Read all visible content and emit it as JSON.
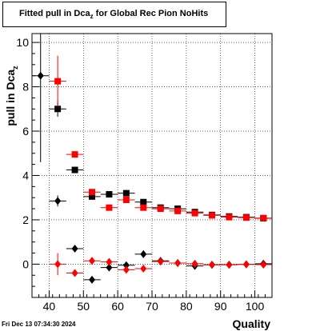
{
  "title": {
    "text": "Fitted pull in Dca",
    "sub": "z",
    "rest": " for Global Rec Pion NoHits"
  },
  "footer_timestamp": "Fri Dec 13 07:34:30 2024",
  "chart_data": {
    "type": "scatter",
    "title": "Fitted pull in Dca_z for Global Rec Pion NoHits",
    "xlabel": "Quality",
    "ylabel": "pull in Dca_z",
    "xlim": [
      35,
      105
    ],
    "ylim": [
      -1.5,
      10.4
    ],
    "grid": true,
    "x_ticks": [
      40,
      50,
      60,
      70,
      80,
      90,
      100
    ],
    "y_ticks": [
      0,
      2,
      4,
      6,
      8,
      10
    ],
    "series": [
      {
        "color": "#000000",
        "marker": "square",
        "points": [
          {
            "x": 42.5,
            "y": 7.0,
            "xerr": 2.5,
            "yerr": 0.35
          },
          {
            "x": 47.5,
            "y": 4.25,
            "xerr": 2.5,
            "yerr": 0.1
          },
          {
            "x": 52.5,
            "y": 3.05,
            "xerr": 2.5,
            "yerr": 0.1
          },
          {
            "x": 57.5,
            "y": 3.15,
            "xerr": 2.5,
            "yerr": 0.08
          },
          {
            "x": 62.5,
            "y": 3.2,
            "xerr": 2.5,
            "yerr": 0.08
          },
          {
            "x": 67.5,
            "y": 2.8,
            "xerr": 2.5,
            "yerr": 0.06
          },
          {
            "x": 72.5,
            "y": 2.55,
            "xerr": 2.5,
            "yerr": 0.05
          },
          {
            "x": 77.5,
            "y": 2.5,
            "xerr": 2.5,
            "yerr": 0.05
          },
          {
            "x": 82.5,
            "y": 2.35,
            "xerr": 2.5,
            "yerr": 0.05
          },
          {
            "x": 87.5,
            "y": 2.22,
            "xerr": 2.5,
            "yerr": 0.04
          },
          {
            "x": 92.5,
            "y": 2.15,
            "xerr": 2.5,
            "yerr": 0.04
          },
          {
            "x": 97.5,
            "y": 2.12,
            "xerr": 2.5,
            "yerr": 0.04
          },
          {
            "x": 102.5,
            "y": 2.07,
            "xerr": 2.5,
            "yerr": 0.04
          }
        ]
      },
      {
        "color": "#ff0000",
        "marker": "square",
        "points": [
          {
            "x": 42.5,
            "y": 8.25,
            "xerr": 2.5,
            "yerr": 1.15
          },
          {
            "x": 47.5,
            "y": 4.95,
            "xerr": 2.5,
            "yerr": 0.1
          },
          {
            "x": 52.5,
            "y": 3.25,
            "xerr": 2.5,
            "yerr": 0.08
          },
          {
            "x": 57.5,
            "y": 2.55,
            "xerr": 2.5,
            "yerr": 0.07
          },
          {
            "x": 62.5,
            "y": 2.9,
            "xerr": 2.5,
            "yerr": 0.07
          },
          {
            "x": 67.5,
            "y": 2.55,
            "xerr": 2.5,
            "yerr": 0.05
          },
          {
            "x": 72.5,
            "y": 2.5,
            "xerr": 2.5,
            "yerr": 0.05
          },
          {
            "x": 77.5,
            "y": 2.4,
            "xerr": 2.5,
            "yerr": 0.05
          },
          {
            "x": 82.5,
            "y": 2.3,
            "xerr": 2.5,
            "yerr": 0.04
          },
          {
            "x": 87.5,
            "y": 2.2,
            "xerr": 2.5,
            "yerr": 0.04
          },
          {
            "x": 92.5,
            "y": 2.12,
            "xerr": 2.5,
            "yerr": 0.04
          },
          {
            "x": 97.5,
            "y": 2.1,
            "xerr": 2.5,
            "yerr": 0.04
          },
          {
            "x": 102.5,
            "y": 2.08,
            "xerr": 2.5,
            "yerr": 0.04
          }
        ]
      },
      {
        "color": "#000000",
        "marker": "diamond",
        "points": [
          {
            "x": 37.5,
            "y": 8.5,
            "xerr": 2.5,
            "yerr": 3.9
          },
          {
            "x": 42.5,
            "y": 2.85,
            "xerr": 2.5,
            "yerr": 0.25
          },
          {
            "x": 47.5,
            "y": 0.7,
            "xerr": 2.5,
            "yerr": 0.08
          },
          {
            "x": 52.5,
            "y": -0.7,
            "xerr": 2.5,
            "yerr": 0.08
          },
          {
            "x": 57.5,
            "y": -0.15,
            "xerr": 2.5,
            "yerr": 0.08
          },
          {
            "x": 62.5,
            "y": -0.05,
            "xerr": 2.5,
            "yerr": 0.06
          },
          {
            "x": 67.5,
            "y": 0.45,
            "xerr": 2.5,
            "yerr": 0.05
          },
          {
            "x": 72.5,
            "y": 0.15,
            "xerr": 2.5,
            "yerr": 0.04
          },
          {
            "x": 77.5,
            "y": 0.05,
            "xerr": 2.5,
            "yerr": 0.04
          },
          {
            "x": 82.5,
            "y": -0.08,
            "xerr": 2.5,
            "yerr": 0.04
          },
          {
            "x": 87.5,
            "y": -0.03,
            "xerr": 2.5,
            "yerr": 0.04
          },
          {
            "x": 92.5,
            "y": -0.02,
            "xerr": 2.5,
            "yerr": 0.04
          },
          {
            "x": 97.5,
            "y": -0.01,
            "xerr": 2.5,
            "yerr": 0.04
          },
          {
            "x": 102.5,
            "y": 0.02,
            "xerr": 2.5,
            "yerr": 0.04
          }
        ]
      },
      {
        "color": "#ff0000",
        "marker": "diamond",
        "points": [
          {
            "x": 42.5,
            "y": 0.0,
            "xerr": 2.5,
            "yerr": 0.5
          },
          {
            "x": 47.5,
            "y": -0.4,
            "xerr": 2.5,
            "yerr": 0.08
          },
          {
            "x": 52.5,
            "y": 0.15,
            "xerr": 2.5,
            "yerr": 0.06
          },
          {
            "x": 57.5,
            "y": 0.1,
            "xerr": 2.5,
            "yerr": 0.06
          },
          {
            "x": 62.5,
            "y": -0.25,
            "xerr": 2.5,
            "yerr": 0.05
          },
          {
            "x": 67.5,
            "y": -0.2,
            "xerr": 2.5,
            "yerr": 0.05
          },
          {
            "x": 72.5,
            "y": 0.12,
            "xerr": 2.5,
            "yerr": 0.04
          },
          {
            "x": 77.5,
            "y": 0.05,
            "xerr": 2.5,
            "yerr": 0.04
          },
          {
            "x": 82.5,
            "y": 0.02,
            "xerr": 2.5,
            "yerr": 0.04
          },
          {
            "x": 87.5,
            "y": -0.02,
            "xerr": 2.5,
            "yerr": 0.04
          },
          {
            "x": 92.5,
            "y": -0.03,
            "xerr": 2.5,
            "yerr": 0.04
          },
          {
            "x": 97.5,
            "y": -0.01,
            "xerr": 2.5,
            "yerr": 0.04
          },
          {
            "x": 102.5,
            "y": -0.02,
            "xerr": 2.5,
            "yerr": 0.04
          }
        ]
      }
    ]
  }
}
